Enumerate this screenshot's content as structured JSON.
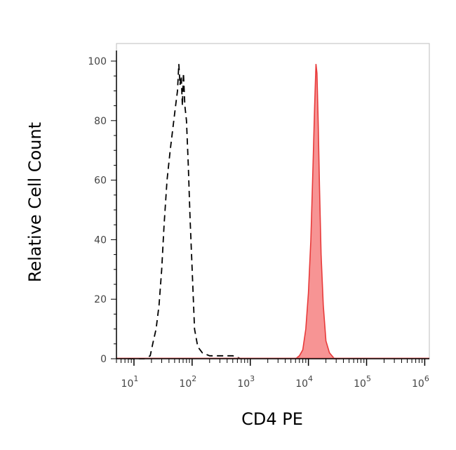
{
  "chart_data": {
    "type": "area",
    "xlabel": "CD4 PE",
    "ylabel": "Relative Cell Count",
    "x_scale": "log",
    "xlim": [
      5,
      1200000
    ],
    "ylim": [
      0,
      100
    ],
    "grid": false,
    "x_ticks": [
      {
        "value": 10,
        "base": "10",
        "exp": "1"
      },
      {
        "value": 100,
        "base": "10",
        "exp": "2"
      },
      {
        "value": 1000,
        "base": "10",
        "exp": "3"
      },
      {
        "value": 10000,
        "base": "10",
        "exp": "4"
      },
      {
        "value": 100000,
        "base": "10",
        "exp": "5"
      },
      {
        "value": 1000000,
        "base": "10",
        "exp": "6"
      }
    ],
    "y_ticks": [
      {
        "value": 0,
        "label": "0"
      },
      {
        "value": 20,
        "label": "20"
      },
      {
        "value": 40,
        "label": "40"
      },
      {
        "value": 60,
        "label": "60"
      },
      {
        "value": 80,
        "label": "80"
      },
      {
        "value": 100,
        "label": "100"
      }
    ],
    "series": [
      {
        "style": "dashed",
        "color": "#000000",
        "x": [
          8,
          15,
          19,
          21,
          24,
          27,
          30,
          33,
          37,
          42,
          47,
          52,
          56,
          59,
          62,
          65,
          68,
          71,
          75,
          80,
          86,
          92,
          100,
          110,
          125,
          150,
          200,
          300,
          500,
          700
        ],
        "y": [
          0,
          0,
          1,
          5,
          10,
          18,
          30,
          45,
          60,
          70,
          78,
          85,
          90,
          99,
          92,
          95,
          85,
          96,
          85,
          80,
          65,
          48,
          30,
          10,
          4,
          2,
          1,
          1,
          1,
          0
        ]
      },
      {
        "style": "filled",
        "color": "#e83a3a",
        "fill": "#f79494",
        "x": [
          6000,
          7000,
          8000,
          9000,
          10000,
          11000,
          12000,
          12800,
          13500,
          14000,
          14700,
          15500,
          16500,
          18000,
          20000,
          23000,
          28000,
          35000
        ],
        "y": [
          0,
          1,
          3,
          10,
          22,
          40,
          65,
          85,
          99,
          96,
          80,
          58,
          35,
          18,
          6,
          2,
          0,
          0
        ]
      }
    ]
  }
}
